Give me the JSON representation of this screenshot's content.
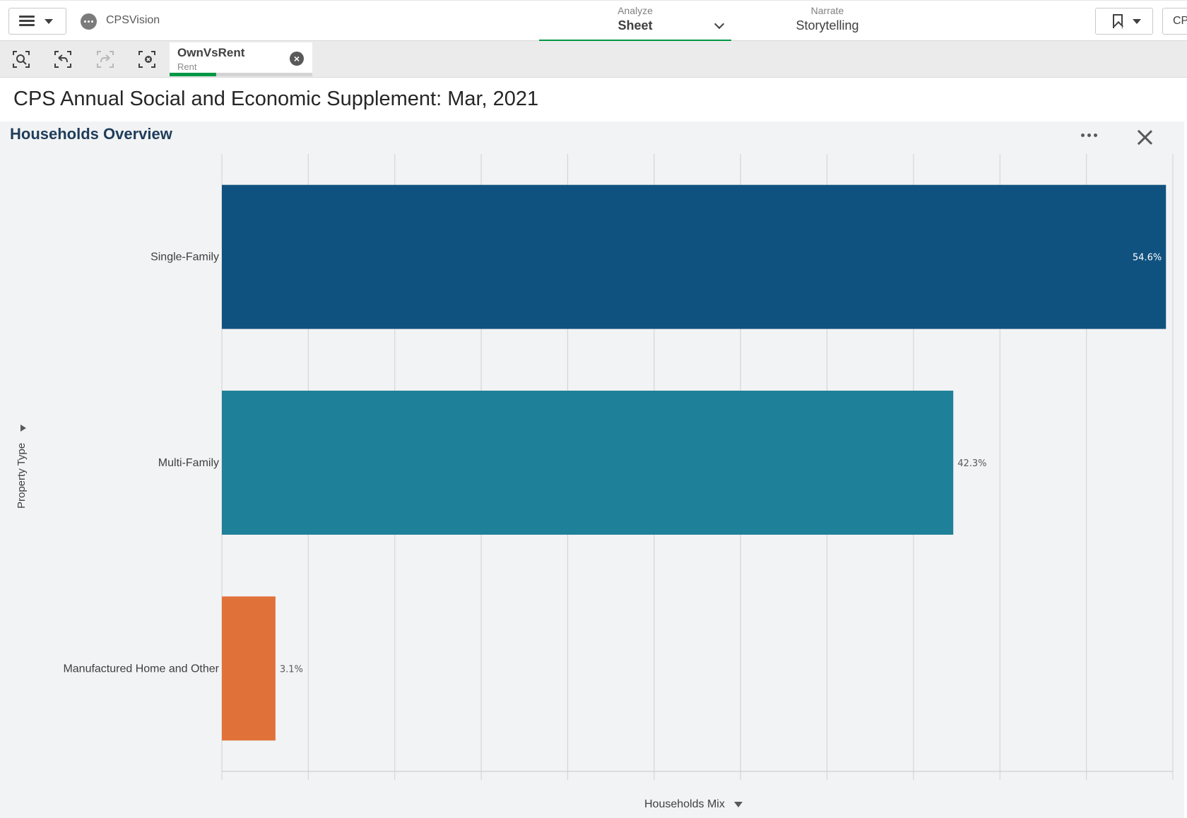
{
  "topbar": {
    "app_name": "CPSVision",
    "analyze_label": "Analyze",
    "analyze_value": "Sheet",
    "narrate_label": "Narrate",
    "narrate_value": "Storytelling",
    "account_label": "CP",
    "icons": [
      "hamburger-menu-icon",
      "app-icon",
      "bookmark-icon"
    ]
  },
  "selection": {
    "field": "OwnVsRent",
    "value": "Rent",
    "accent": "#009845"
  },
  "sheet": {
    "title": "CPS Annual Social and Economic Supplement: Mar, 2021"
  },
  "panel": {
    "title": "Households Overview",
    "ylabel": "Property Type",
    "xlabel": "Households Mix"
  },
  "chart_data": {
    "type": "bar",
    "orientation": "horizontal",
    "categories": [
      "Single-Family",
      "Multi-Family",
      "Manufactured Home and Other"
    ],
    "values": [
      54.6,
      42.3,
      3.1
    ],
    "data_labels": [
      "54.6%",
      "42.3%",
      "3.1%"
    ],
    "colors": [
      "#10527f",
      "#1e8099",
      "#e07139"
    ],
    "xlabel": "Households Mix",
    "ylabel": "Property Type",
    "xlim": [
      0,
      55
    ],
    "grid": true
  }
}
